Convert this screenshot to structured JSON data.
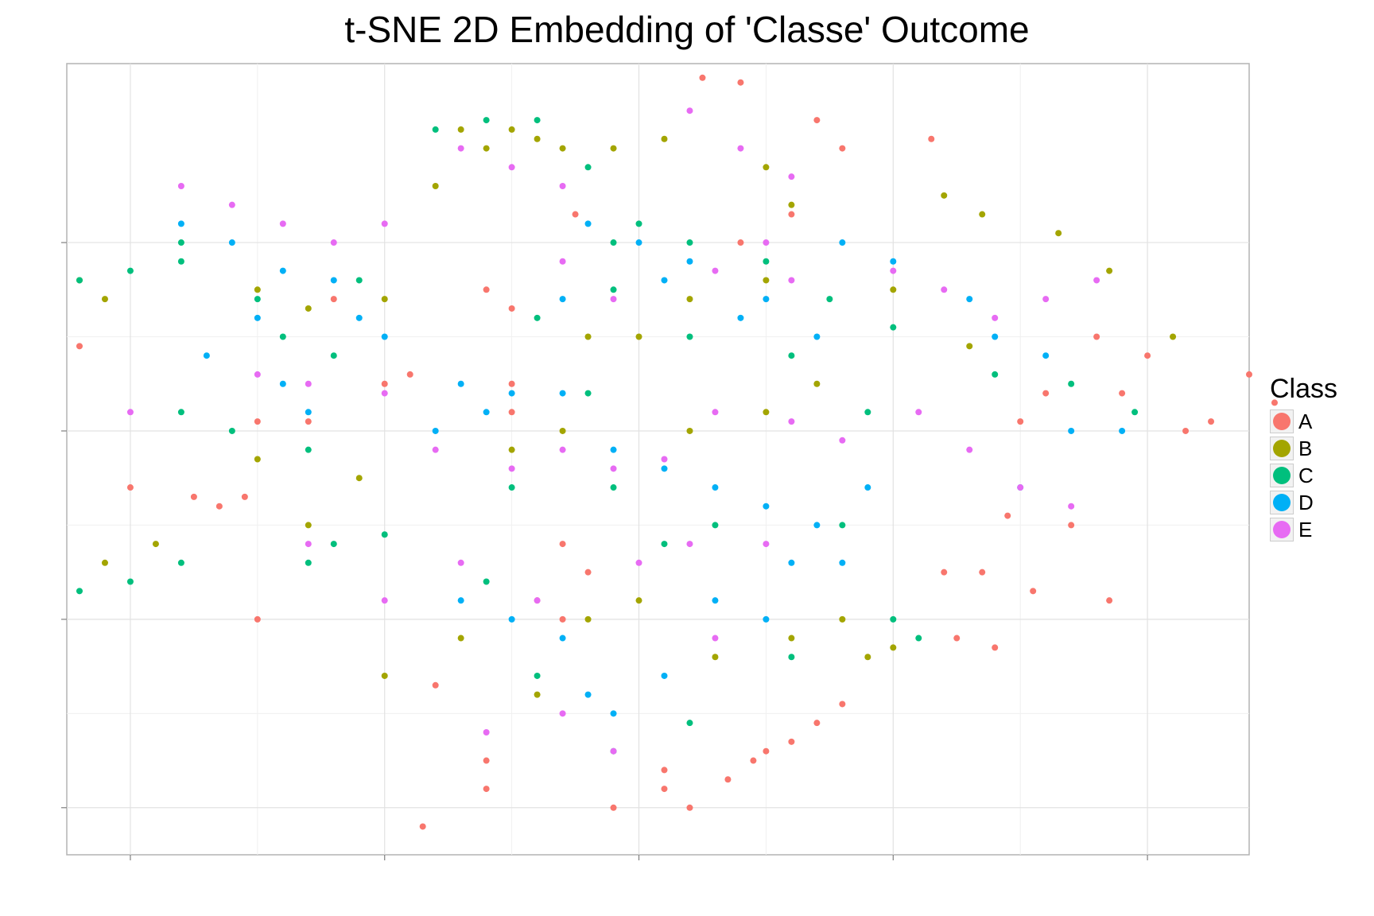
{
  "chart_data": {
    "type": "scatter",
    "title": "t-SNE 2D Embedding of 'Classe' Outcome",
    "xlabel": "",
    "ylabel": "",
    "xlim": [
      -45,
      48
    ],
    "ylim": [
      -45,
      39
    ],
    "grid": true,
    "x_major_ticks": [
      -40,
      -20,
      0,
      20,
      40
    ],
    "y_major_ticks": [
      -40,
      -20,
      0,
      20
    ],
    "legend": {
      "title": "Class",
      "placement": "right",
      "entries": [
        {
          "label": "A",
          "color": "#F8766D"
        },
        {
          "label": "B",
          "color": "#A3A500"
        },
        {
          "label": "C",
          "color": "#00BF7D"
        },
        {
          "label": "D",
          "color": "#00B0F6"
        },
        {
          "label": "E",
          "color": "#E76BF3"
        }
      ]
    },
    "series": [
      {
        "name": "A",
        "color": "#F8766D",
        "points": [
          [
            5,
            37.5
          ],
          [
            8,
            37
          ],
          [
            14,
            33
          ],
          [
            16,
            30
          ],
          [
            23,
            31
          ],
          [
            48,
            6
          ],
          [
            50,
            3
          ],
          [
            45,
            1
          ],
          [
            43,
            0
          ],
          [
            32,
            4
          ],
          [
            29,
            -9
          ],
          [
            34,
            -10
          ],
          [
            24,
            -15
          ],
          [
            27,
            -15
          ],
          [
            25,
            -22
          ],
          [
            28,
            -23
          ],
          [
            31,
            -17
          ],
          [
            37,
            -18
          ],
          [
            12,
            -33
          ],
          [
            14,
            -31
          ],
          [
            16,
            -29
          ],
          [
            10,
            -34
          ],
          [
            9,
            -35
          ],
          [
            7,
            -37
          ],
          [
            2,
            -38
          ],
          [
            4,
            -40
          ],
          [
            -2,
            -40
          ],
          [
            -40,
            -6
          ],
          [
            -35,
            -7
          ],
          [
            -33,
            -8
          ],
          [
            -31,
            -7
          ],
          [
            -30,
            -20
          ],
          [
            -16,
            -27
          ],
          [
            -12,
            -35
          ],
          [
            -17,
            -42
          ],
          [
            -12,
            -38
          ],
          [
            -8,
            -18
          ],
          [
            -6,
            -12
          ],
          [
            -10,
            5
          ],
          [
            -12,
            15
          ],
          [
            -10,
            13
          ],
          [
            -5,
            23
          ],
          [
            8,
            20
          ],
          [
            12,
            23
          ],
          [
            -20,
            5
          ],
          [
            -18,
            6
          ],
          [
            -44,
            9
          ],
          [
            -30,
            1
          ],
          [
            -26,
            1
          ],
          [
            -24,
            14
          ],
          [
            -10,
            2
          ],
          [
            2,
            -36
          ],
          [
            -6,
            -20
          ],
          [
            -4,
            -15
          ],
          [
            36,
            10
          ],
          [
            40,
            8
          ],
          [
            38,
            4
          ],
          [
            30,
            1
          ]
        ]
      },
      {
        "name": "B",
        "color": "#A3A500",
        "points": [
          [
            -14,
            32
          ],
          [
            -12,
            30
          ],
          [
            -10,
            32
          ],
          [
            -8,
            31
          ],
          [
            -6,
            30
          ],
          [
            -16,
            26
          ],
          [
            -2,
            30
          ],
          [
            2,
            31
          ],
          [
            10,
            28
          ],
          [
            12,
            24
          ],
          [
            24,
            25
          ],
          [
            27,
            23
          ],
          [
            33,
            21
          ],
          [
            37,
            17
          ],
          [
            42,
            10
          ],
          [
            -44,
            16
          ],
          [
            -42,
            14
          ],
          [
            -30,
            15
          ],
          [
            -26,
            13
          ],
          [
            -20,
            14
          ],
          [
            -30,
            -3
          ],
          [
            -22,
            -5
          ],
          [
            -26,
            -10
          ],
          [
            -42,
            -14
          ],
          [
            -38,
            -12
          ],
          [
            -20,
            -26
          ],
          [
            -14,
            -22
          ],
          [
            -8,
            -28
          ],
          [
            -4,
            -20
          ],
          [
            0,
            -18
          ],
          [
            6,
            -24
          ],
          [
            12,
            -22
          ],
          [
            16,
            -20
          ],
          [
            18,
            -24
          ],
          [
            20,
            -23
          ],
          [
            -10,
            -2
          ],
          [
            -6,
            0
          ],
          [
            4,
            0
          ],
          [
            10,
            2
          ],
          [
            14,
            5
          ],
          [
            20,
            15
          ],
          [
            26,
            9
          ],
          [
            -4,
            10
          ],
          [
            0,
            10
          ],
          [
            4,
            14
          ],
          [
            10,
            16
          ]
        ]
      },
      {
        "name": "C",
        "color": "#00BF7D",
        "points": [
          [
            -36,
            20
          ],
          [
            -40,
            17
          ],
          [
            -44,
            16
          ],
          [
            -36,
            18
          ],
          [
            -28,
            10
          ],
          [
            -24,
            8
          ],
          [
            -36,
            2
          ],
          [
            -32,
            0
          ],
          [
            -16,
            32
          ],
          [
            -12,
            33
          ],
          [
            -8,
            33
          ],
          [
            -4,
            28
          ],
          [
            -2,
            20
          ],
          [
            0,
            22
          ],
          [
            4,
            20
          ],
          [
            10,
            18
          ],
          [
            15,
            14
          ],
          [
            20,
            11
          ],
          [
            28,
            6
          ],
          [
            34,
            5
          ],
          [
            39,
            2
          ],
          [
            -44,
            -17
          ],
          [
            -40,
            -16
          ],
          [
            -36,
            -14
          ],
          [
            -26,
            -14
          ],
          [
            -24,
            -12
          ],
          [
            -20,
            -11
          ],
          [
            -12,
            -16
          ],
          [
            -8,
            -26
          ],
          [
            -2,
            -34
          ],
          [
            4,
            -31
          ],
          [
            12,
            -24
          ],
          [
            20,
            -20
          ],
          [
            22,
            -22
          ],
          [
            -8,
            12
          ],
          [
            -2,
            15
          ],
          [
            4,
            10
          ],
          [
            12,
            8
          ],
          [
            18,
            2
          ],
          [
            -10,
            -6
          ],
          [
            -2,
            -6
          ],
          [
            6,
            -10
          ],
          [
            -30,
            14
          ],
          [
            -22,
            16
          ],
          [
            -26,
            -2
          ],
          [
            -4,
            4
          ],
          [
            2,
            -12
          ],
          [
            16,
            -10
          ]
        ]
      },
      {
        "name": "D",
        "color": "#00B0F6",
        "points": [
          [
            -36,
            22
          ],
          [
            -32,
            20
          ],
          [
            -28,
            17
          ],
          [
            -24,
            16
          ],
          [
            -30,
            12
          ],
          [
            -34,
            8
          ],
          [
            -28,
            5
          ],
          [
            -22,
            12
          ],
          [
            -20,
            10
          ],
          [
            -26,
            2
          ],
          [
            -14,
            5
          ],
          [
            -12,
            2
          ],
          [
            -10,
            4
          ],
          [
            -16,
            0
          ],
          [
            -4,
            22
          ],
          [
            0,
            20
          ],
          [
            4,
            18
          ],
          [
            10,
            14
          ],
          [
            14,
            10
          ],
          [
            8,
            12
          ],
          [
            2,
            16
          ],
          [
            -6,
            14
          ],
          [
            16,
            20
          ],
          [
            20,
            18
          ],
          [
            26,
            14
          ],
          [
            28,
            10
          ],
          [
            32,
            8
          ],
          [
            34,
            0
          ],
          [
            38,
            0
          ],
          [
            30,
            -6
          ],
          [
            -6,
            4
          ],
          [
            -2,
            -2
          ],
          [
            2,
            -4
          ],
          [
            6,
            -6
          ],
          [
            10,
            -8
          ],
          [
            14,
            -10
          ],
          [
            18,
            -6
          ],
          [
            16,
            -14
          ],
          [
            -14,
            -18
          ],
          [
            -10,
            -20
          ],
          [
            -6,
            -22
          ],
          [
            -4,
            -28
          ],
          [
            -2,
            -30
          ],
          [
            2,
            -26
          ],
          [
            6,
            -18
          ],
          [
            10,
            -20
          ],
          [
            12,
            -14
          ]
        ]
      },
      {
        "name": "E",
        "color": "#E76BF3",
        "points": [
          [
            -36,
            26
          ],
          [
            -32,
            24
          ],
          [
            -28,
            22
          ],
          [
            -24,
            20
          ],
          [
            -20,
            22
          ],
          [
            -40,
            2
          ],
          [
            -30,
            6
          ],
          [
            -26,
            5
          ],
          [
            -20,
            4
          ],
          [
            -14,
            30
          ],
          [
            -10,
            28
          ],
          [
            -6,
            26
          ],
          [
            4,
            34
          ],
          [
            8,
            30
          ],
          [
            12,
            27
          ],
          [
            -6,
            18
          ],
          [
            -2,
            14
          ],
          [
            6,
            17
          ],
          [
            10,
            20
          ],
          [
            12,
            16
          ],
          [
            20,
            17
          ],
          [
            24,
            15
          ],
          [
            28,
            12
          ],
          [
            32,
            14
          ],
          [
            36,
            16
          ],
          [
            -16,
            -2
          ],
          [
            -10,
            -4
          ],
          [
            -6,
            -2
          ],
          [
            -2,
            -4
          ],
          [
            2,
            -3
          ],
          [
            6,
            2
          ],
          [
            12,
            1
          ],
          [
            16,
            -1
          ],
          [
            22,
            2
          ],
          [
            26,
            -2
          ],
          [
            30,
            -6
          ],
          [
            34,
            -8
          ],
          [
            -26,
            -12
          ],
          [
            -20,
            -18
          ],
          [
            -14,
            -14
          ],
          [
            -8,
            -18
          ],
          [
            0,
            -14
          ],
          [
            4,
            -12
          ],
          [
            -12,
            -32
          ],
          [
            -6,
            -30
          ],
          [
            -2,
            -34
          ],
          [
            6,
            -22
          ],
          [
            10,
            -12
          ]
        ]
      }
    ]
  }
}
